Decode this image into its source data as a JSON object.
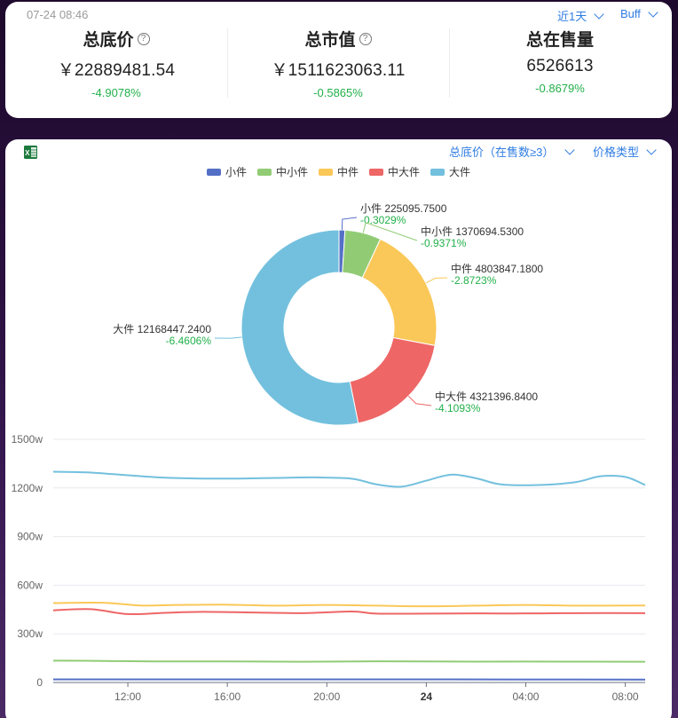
{
  "summary": {
    "timestamp": "07-24 08:46",
    "period_select": "近1天",
    "platform_select": "Buff",
    "stats": [
      {
        "title": "总底价",
        "value": "￥22889481.54",
        "change": "-4.9078%",
        "has_help": true
      },
      {
        "title": "总市值",
        "value": "￥1511623063.11",
        "change": "-0.5865%",
        "has_help": true
      },
      {
        "title": "总在售量",
        "value": "6526613",
        "change": "-0.8679%",
        "has_help": false
      }
    ]
  },
  "chart_panel": {
    "export_icon": "excel-icon",
    "metric_select": "总底价（在售数≥3）",
    "price_type_select": "价格类型"
  },
  "chart_data": [
    {
      "type": "pie",
      "donut": true,
      "legend_position": "top",
      "series": [
        {
          "name": "小件",
          "value": 225095.75,
          "label": "小件 225095.7500",
          "change": "-0.3029%",
          "color": "#5470c6"
        },
        {
          "name": "中小件",
          "value": 1370694.53,
          "label": "中小件 1370694.5300",
          "change": "-0.9371%",
          "color": "#91cc75"
        },
        {
          "name": "中件",
          "value": 4803847.18,
          "label": "中件 4803847.1800",
          "change": "-2.8723%",
          "color": "#fac858"
        },
        {
          "name": "中大件",
          "value": 4321396.84,
          "label": "中大件 4321396.8400",
          "change": "-4.1093%",
          "color": "#ee6666"
        },
        {
          "name": "大件",
          "value": 12168447.24,
          "label": "大件 12168447.2400",
          "change": "-6.4606%",
          "color": "#73c0de"
        }
      ]
    },
    {
      "type": "line",
      "smooth": true,
      "grid": true,
      "ylim": [
        0,
        1500
      ],
      "yticks": [
        "0",
        "300w",
        "600w",
        "900w",
        "1200w",
        "1500w"
      ],
      "xlim": [
        9,
        32.8
      ],
      "xticks": [
        {
          "label": "12:00",
          "x": 12,
          "bold": false
        },
        {
          "label": "16:00",
          "x": 16,
          "bold": false
        },
        {
          "label": "20:00",
          "x": 20,
          "bold": false
        },
        {
          "label": "24",
          "x": 24,
          "bold": true
        },
        {
          "label": "04:00",
          "x": 28,
          "bold": false
        },
        {
          "label": "08:00",
          "x": 32,
          "bold": false
        }
      ],
      "series": [
        {
          "name": "大件",
          "color": "#73c0de",
          "points": [
            [
              9,
              1300
            ],
            [
              10.5,
              1295
            ],
            [
              12,
              1278
            ],
            [
              13.5,
              1263
            ],
            [
              15,
              1258
            ],
            [
              16.5,
              1258
            ],
            [
              18,
              1262
            ],
            [
              19.5,
              1265
            ],
            [
              21,
              1257
            ],
            [
              22,
              1222
            ],
            [
              23,
              1208
            ],
            [
              24,
              1245
            ],
            [
              25,
              1282
            ],
            [
              26,
              1260
            ],
            [
              27,
              1222
            ],
            [
              28.5,
              1218
            ],
            [
              30,
              1236
            ],
            [
              31,
              1272
            ],
            [
              32,
              1268
            ],
            [
              32.8,
              1218
            ]
          ]
        },
        {
          "name": "中件",
          "color": "#fac858",
          "points": [
            [
              9,
              490
            ],
            [
              11,
              492
            ],
            [
              12.5,
              475
            ],
            [
              14,
              478
            ],
            [
              16,
              480
            ],
            [
              18,
              474
            ],
            [
              20,
              478
            ],
            [
              22,
              474
            ],
            [
              24,
              470
            ],
            [
              26,
              474
            ],
            [
              28,
              478
            ],
            [
              30,
              474
            ],
            [
              32.8,
              475
            ]
          ]
        },
        {
          "name": "中大件",
          "color": "#ee6666",
          "points": [
            [
              9,
              445
            ],
            [
              10.5,
              452
            ],
            [
              12,
              422
            ],
            [
              13.5,
              430
            ],
            [
              15,
              436
            ],
            [
              17,
              432
            ],
            [
              19,
              428
            ],
            [
              21,
              438
            ],
            [
              22,
              425
            ],
            [
              24,
              425
            ],
            [
              26,
              426
            ],
            [
              28,
              426
            ],
            [
              30,
              428
            ],
            [
              32.8,
              428
            ]
          ]
        },
        {
          "name": "中小件",
          "color": "#91cc75",
          "points": [
            [
              9,
              135
            ],
            [
              11,
              133
            ],
            [
              13,
              130
            ],
            [
              16,
              130
            ],
            [
              19,
              128
            ],
            [
              22,
              131
            ],
            [
              25,
              129
            ],
            [
              28,
              129
            ],
            [
              32.8,
              128
            ]
          ]
        },
        {
          "name": "小件",
          "color": "#5470c6",
          "points": [
            [
              9,
              19
            ],
            [
              16,
              19
            ],
            [
              24,
              19
            ],
            [
              32.8,
              18
            ]
          ]
        }
      ]
    }
  ]
}
